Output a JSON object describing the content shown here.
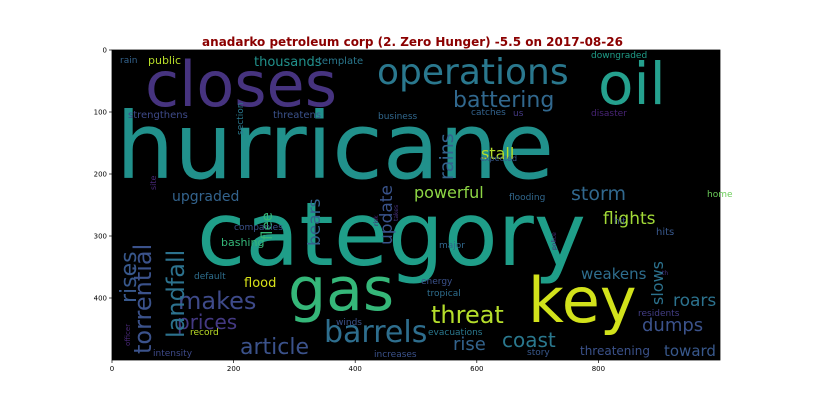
{
  "title": "anadarko petroleum corp (2. Zero Hunger) -5.5 on 2017-08-26",
  "axes": {
    "x_ticks": [
      "0",
      "200",
      "400",
      "600",
      "800"
    ],
    "y_ticks": [
      "0",
      "100",
      "200",
      "300",
      "400"
    ]
  },
  "words": [
    {
      "text": "hurricane",
      "color": "#21918c"
    },
    {
      "text": "category",
      "color": "#1f9e89"
    },
    {
      "text": "closes",
      "color": "#46337f"
    },
    {
      "text": "oil",
      "color": "#25a18e"
    },
    {
      "text": "operations",
      "color": "#2a788e"
    },
    {
      "text": "gas",
      "color": "#35b779"
    },
    {
      "text": "key",
      "color": "#d2e21b"
    },
    {
      "text": "barrels",
      "color": "#2e6e8e"
    },
    {
      "text": "battering",
      "color": "#31688e"
    },
    {
      "text": "threat",
      "color": "#b5de2b"
    },
    {
      "text": "makes",
      "color": "#3e4a89"
    },
    {
      "text": "article",
      "color": "#3b528b"
    },
    {
      "text": "prices",
      "color": "#443983"
    },
    {
      "text": "landfall",
      "color": "#2c728e"
    },
    {
      "text": "torrential",
      "color": "#3b528b"
    },
    {
      "text": "rises",
      "color": "#38588c"
    },
    {
      "text": "coast",
      "color": "#2a788e"
    },
    {
      "text": "storm",
      "color": "#31688e"
    },
    {
      "text": "flights",
      "color": "#a2da37"
    },
    {
      "text": "powerful",
      "color": "#8ed645"
    },
    {
      "text": "dumps",
      "color": "#3b528b"
    },
    {
      "text": "bears",
      "color": "#33638d"
    },
    {
      "text": "update",
      "color": "#3a548c"
    },
    {
      "text": "rains",
      "color": "#33638d"
    },
    {
      "text": "stall",
      "color": "#b5de2b"
    },
    {
      "text": "rise",
      "color": "#33638d"
    },
    {
      "text": "roars",
      "color": "#2c728e"
    },
    {
      "text": "toward",
      "color": "#38588c"
    },
    {
      "text": "slows",
      "color": "#2c728e"
    },
    {
      "text": "weakens",
      "color": "#2e6e8e"
    },
    {
      "text": "upgraded",
      "color": "#33638d"
    },
    {
      "text": "thousands",
      "color": "#21918c"
    },
    {
      "text": "flee",
      "color": "#37b878"
    },
    {
      "text": "threatening",
      "color": "#3b528b"
    },
    {
      "text": "flood",
      "color": "#d8e219"
    },
    {
      "text": "public",
      "color": "#b8de29"
    },
    {
      "text": "rain",
      "color": "#33638d"
    },
    {
      "text": "template",
      "color": "#2a788e"
    },
    {
      "text": "downgraded",
      "color": "#1f9e89"
    },
    {
      "text": "strengthens",
      "color": "#3e4a89"
    },
    {
      "text": "threatens",
      "color": "#3b528b"
    },
    {
      "text": "section",
      "color": "#2a788e"
    },
    {
      "text": "business",
      "color": "#31688e"
    },
    {
      "text": "catches",
      "color": "#33638d"
    },
    {
      "text": "us",
      "color": "#443983"
    },
    {
      "text": "disaster",
      "color": "#482475"
    },
    {
      "text": "expected",
      "color": "#38588c"
    },
    {
      "text": "flooding",
      "color": "#31688e"
    },
    {
      "text": "home",
      "color": "#6ccd5a"
    },
    {
      "text": "hit",
      "color": "#3b528b"
    },
    {
      "text": "hits",
      "color": "#38588c"
    },
    {
      "text": "companies",
      "color": "#3b528b"
    },
    {
      "text": "bashing",
      "color": "#35b779"
    },
    {
      "text": "site",
      "color": "#482878"
    },
    {
      "text": "risk",
      "color": "#482475"
    },
    {
      "text": "takes",
      "color": "#46327e"
    },
    {
      "text": "police",
      "color": "#482878"
    },
    {
      "text": "default",
      "color": "#2e6e8e"
    },
    {
      "text": "major",
      "color": "#31688e"
    },
    {
      "text": "energy",
      "color": "#3b528b"
    },
    {
      "text": "tropical",
      "color": "#2e6e8e"
    },
    {
      "text": "th",
      "color": "#46327e"
    },
    {
      "text": "residents",
      "color": "#433e85"
    },
    {
      "text": "record",
      "color": "#bddf26"
    },
    {
      "text": "winds",
      "color": "#3b528b"
    },
    {
      "text": "evacuations",
      "color": "#2a788e"
    },
    {
      "text": "officer",
      "color": "#482878"
    },
    {
      "text": "intensity",
      "color": "#3e4a89"
    },
    {
      "text": "increases",
      "color": "#3b528b"
    },
    {
      "text": "story",
      "color": "#38588c"
    }
  ]
}
